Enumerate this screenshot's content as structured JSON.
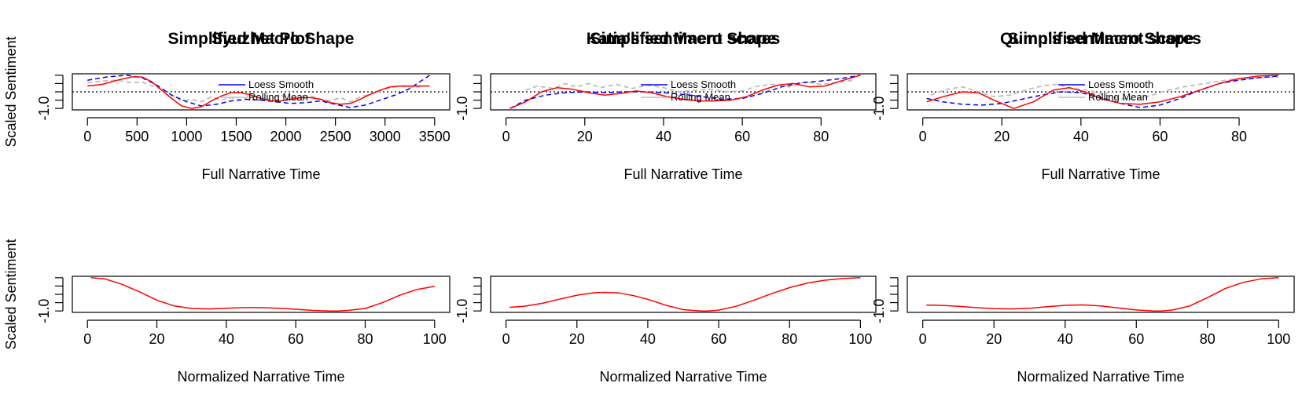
{
  "figure": {
    "ylabel": "Scaled Sentiment",
    "colors": {
      "raw": "#bdbdbd",
      "rolling": "#0000ee",
      "loess": "#ff0000",
      "zero": "#000000"
    }
  },
  "chart_data": [
    {
      "type": "line",
      "title": "Syuzhet Plot",
      "xlabel": "Full Narrative Time",
      "ylabel": "Scaled Sentiment",
      "xlim": [
        0,
        3500
      ],
      "ylim": [
        -1.0,
        1.0
      ],
      "xticks": [
        0,
        500,
        1000,
        1500,
        2000,
        2500,
        3000,
        3500
      ],
      "yticks": [
        -1.0
      ],
      "legend": [
        "Loess Smooth",
        "Rolling Mean"
      ],
      "legend_position": "center",
      "zero_line": 0.0,
      "series": [
        {
          "style": "dashed-gray",
          "x": [
            0,
            150,
            300,
            450,
            550,
            650,
            750,
            850,
            950,
            1050,
            1150,
            1250,
            1350,
            1450,
            1550,
            1650,
            1750,
            1850,
            1950,
            2050,
            2150,
            2250,
            2350,
            2450,
            2550,
            2650,
            2750,
            2850,
            2950,
            3050,
            3150,
            3250,
            3350
          ],
          "y": [
            0.55,
            0.65,
            0.7,
            0.55,
            0.6,
            0.35,
            0.15,
            -0.2,
            -0.55,
            -0.45,
            -0.6,
            -0.3,
            -0.5,
            -0.35,
            -0.5,
            -0.2,
            -0.4,
            -0.45,
            -0.2,
            -0.45,
            -0.5,
            -0.25,
            -0.45,
            -0.55,
            -0.35,
            -0.6,
            -0.3,
            -0.15,
            0.05,
            0.25,
            0.35,
            0.25,
            0.3
          ]
        },
        {
          "name": "Rolling Mean",
          "style": "dashed-blue",
          "x": [
            0,
            200,
            400,
            550,
            700,
            850,
            1000,
            1150,
            1300,
            1450,
            1600,
            1750,
            1900,
            2050,
            2200,
            2350,
            2500,
            2650,
            2800,
            2950,
            3100,
            3250,
            3400,
            3450
          ],
          "y": [
            0.7,
            0.9,
            1.0,
            0.85,
            0.4,
            -0.2,
            -0.6,
            -0.85,
            -0.75,
            -0.55,
            -0.45,
            -0.5,
            -0.6,
            -0.7,
            -0.65,
            -0.55,
            -0.75,
            -0.95,
            -0.8,
            -0.5,
            -0.2,
            0.2,
            0.8,
            1.0
          ]
        },
        {
          "name": "Loess Smooth",
          "style": "solid-red",
          "x": [
            0,
            150,
            300,
            450,
            550,
            650,
            750,
            850,
            950,
            1050,
            1150,
            1250,
            1350,
            1450,
            1550,
            1650,
            1750,
            1850,
            1950,
            2050,
            2150,
            2250,
            2350,
            2450,
            2550,
            2650,
            2750,
            2850,
            2950,
            3050,
            3150,
            3250,
            3350,
            3450
          ],
          "y": [
            0.35,
            0.45,
            0.7,
            0.9,
            0.9,
            0.6,
            0.1,
            -0.4,
            -0.85,
            -1.0,
            -0.9,
            -0.55,
            -0.25,
            -0.05,
            -0.05,
            -0.2,
            -0.4,
            -0.55,
            -0.55,
            -0.45,
            -0.35,
            -0.35,
            -0.45,
            -0.65,
            -0.75,
            -0.7,
            -0.45,
            -0.15,
            0.1,
            0.3,
            0.35,
            0.35,
            0.35,
            0.35
          ]
        }
      ]
    },
    {
      "type": "line",
      "title": "Katia's sentiment scores",
      "xlabel": "Full Narrative Time",
      "ylabel": "",
      "xlim": [
        0,
        90
      ],
      "ylim": [
        -1.0,
        1.0
      ],
      "xticks": [
        0,
        20,
        40,
        60,
        80
      ],
      "yticks": [
        -1.0
      ],
      "legend": [
        "Loess Smooth",
        "Rolling Mean"
      ],
      "legend_position": "center",
      "zero_line": 0.0,
      "series": [
        {
          "style": "dashed-gray",
          "x": [
            5,
            8,
            12,
            15,
            18,
            21,
            24,
            28,
            32,
            36,
            40,
            44,
            48,
            52,
            56,
            60,
            64,
            68,
            72,
            76,
            80,
            84,
            88
          ],
          "y": [
            0.1,
            0.35,
            0.2,
            0.5,
            0.3,
            0.5,
            0.25,
            0.45,
            0.2,
            0.4,
            0.25,
            0.0,
            0.1,
            0.15,
            0.0,
            0.05,
            0.35,
            0.45,
            0.3,
            0.6,
            0.45,
            0.55,
            0.7
          ]
        },
        {
          "name": "Rolling Mean",
          "style": "dashed-blue",
          "x": [
            1,
            5,
            10,
            15,
            20,
            25,
            30,
            35,
            40,
            45,
            50,
            55,
            60,
            65,
            70,
            75,
            80,
            85,
            90
          ],
          "y": [
            -1.0,
            -0.5,
            -0.2,
            -0.05,
            0.0,
            -0.05,
            0.0,
            0.0,
            -0.05,
            -0.15,
            -0.3,
            -0.45,
            -0.4,
            -0.1,
            0.3,
            0.55,
            0.65,
            0.8,
            1.0
          ]
        },
        {
          "name": "Loess Smooth",
          "style": "solid-red",
          "x": [
            1,
            5,
            9,
            13,
            17,
            21,
            25,
            29,
            33,
            37,
            41,
            45,
            49,
            53,
            57,
            61,
            65,
            69,
            73,
            77,
            81,
            85,
            90
          ],
          "y": [
            -1.0,
            -0.6,
            0.0,
            0.25,
            0.15,
            -0.05,
            -0.2,
            -0.1,
            0.05,
            -0.05,
            -0.3,
            -0.45,
            -0.55,
            -0.55,
            -0.5,
            -0.3,
            0.1,
            0.4,
            0.5,
            0.3,
            0.35,
            0.65,
            1.0
          ]
        }
      ]
    },
    {
      "type": "line",
      "title": "Quinn's sentiment scores",
      "xlabel": "Full Narrative Time",
      "ylabel": "",
      "xlim": [
        0,
        90
      ],
      "ylim": [
        -1.0,
        1.0
      ],
      "xticks": [
        0,
        20,
        40,
        60,
        80
      ],
      "yticks": [
        -1.0
      ],
      "legend": [
        "Loess Smooth",
        "Rolling Mean"
      ],
      "legend_position": "center",
      "zero_line": 0.0,
      "series": [
        {
          "style": "dashed-gray",
          "x": [
            2,
            6,
            10,
            14,
            18,
            22,
            26,
            30,
            34,
            38,
            42,
            46,
            50,
            54,
            58,
            62,
            66,
            70,
            74,
            78,
            82,
            86,
            90
          ],
          "y": [
            -0.2,
            0.15,
            0.3,
            0.0,
            -0.3,
            -0.2,
            0.1,
            0.35,
            0.45,
            0.2,
            0.1,
            -0.2,
            -0.4,
            -0.45,
            -0.2,
            0.1,
            0.3,
            0.45,
            0.6,
            0.75,
            0.8,
            0.85,
            0.9
          ]
        },
        {
          "name": "Rolling Mean",
          "style": "dashed-blue",
          "x": [
            1,
            5,
            10,
            15,
            20,
            25,
            30,
            35,
            40,
            45,
            50,
            55,
            60,
            65,
            70,
            75,
            80,
            85,
            90
          ],
          "y": [
            -0.4,
            -0.6,
            -0.75,
            -0.8,
            -0.7,
            -0.45,
            -0.2,
            0.0,
            -0.05,
            -0.35,
            -0.7,
            -0.95,
            -0.8,
            -0.4,
            0.1,
            0.5,
            0.7,
            0.85,
            0.95
          ]
        },
        {
          "name": "Loess Smooth",
          "style": "solid-red",
          "x": [
            1,
            5,
            10,
            14,
            18,
            23,
            28,
            33,
            37,
            41,
            45,
            50,
            55,
            60,
            65,
            70,
            75,
            80,
            85,
            90
          ],
          "y": [
            -0.6,
            -0.3,
            0.0,
            -0.05,
            -0.5,
            -1.0,
            -0.6,
            0.1,
            0.25,
            0.0,
            -0.4,
            -0.7,
            -0.75,
            -0.6,
            -0.3,
            0.1,
            0.5,
            0.8,
            0.95,
            1.0
          ]
        }
      ]
    },
    {
      "type": "line",
      "title": "Simplified Macro Shape",
      "xlabel": "Normalized Narrative Time",
      "ylabel": "Scaled Sentiment",
      "xlim": [
        0,
        100
      ],
      "ylim": [
        -1.0,
        1.0
      ],
      "xticks": [
        0,
        20,
        40,
        60,
        80,
        100
      ],
      "yticks": [
        -1.0
      ],
      "series": [
        {
          "style": "solid-red",
          "x": [
            1,
            5,
            10,
            15,
            20,
            25,
            30,
            35,
            40,
            45,
            50,
            55,
            60,
            65,
            70,
            72,
            75,
            80,
            85,
            90,
            95,
            100
          ],
          "y": [
            1.0,
            0.93,
            0.6,
            0.15,
            -0.35,
            -0.7,
            -0.85,
            -0.88,
            -0.84,
            -0.8,
            -0.8,
            -0.84,
            -0.9,
            -0.97,
            -1.0,
            -1.0,
            -0.97,
            -0.85,
            -0.5,
            -0.05,
            0.3,
            0.48
          ]
        }
      ]
    },
    {
      "type": "line",
      "title": "Simplified Macro Shape",
      "xlabel": "Normalized Narrative Time",
      "ylabel": "",
      "xlim": [
        0,
        100
      ],
      "ylim": [
        -1.0,
        1.0
      ],
      "xticks": [
        0,
        20,
        40,
        60,
        80,
        100
      ],
      "yticks": [
        -1.0
      ],
      "series": [
        {
          "style": "solid-red",
          "x": [
            1,
            5,
            10,
            15,
            20,
            25,
            28,
            32,
            36,
            40,
            45,
            50,
            55,
            57,
            60,
            65,
            70,
            75,
            80,
            85,
            90,
            95,
            100
          ],
          "y": [
            -0.78,
            -0.72,
            -0.55,
            -0.3,
            -0.05,
            0.1,
            0.12,
            0.08,
            -0.08,
            -0.3,
            -0.65,
            -0.92,
            -1.0,
            -1.0,
            -0.95,
            -0.72,
            -0.35,
            0.05,
            0.4,
            0.68,
            0.85,
            0.95,
            1.0
          ]
        }
      ]
    },
    {
      "type": "line",
      "title": "Simplified Macro Shape",
      "xlabel": "Normalized Narrative Time",
      "ylabel": "",
      "xlim": [
        0,
        100
      ],
      "ylim": [
        -1.0,
        1.0
      ],
      "xticks": [
        0,
        20,
        40,
        60,
        80,
        100
      ],
      "yticks": [
        -1.0
      ],
      "series": [
        {
          "style": "solid-red",
          "x": [
            1,
            5,
            10,
            15,
            20,
            25,
            30,
            35,
            40,
            45,
            50,
            55,
            60,
            65,
            67,
            70,
            75,
            80,
            85,
            90,
            95,
            100
          ],
          "y": [
            -0.65,
            -0.66,
            -0.72,
            -0.8,
            -0.86,
            -0.88,
            -0.84,
            -0.74,
            -0.66,
            -0.64,
            -0.7,
            -0.82,
            -0.94,
            -1.0,
            -1.0,
            -0.95,
            -0.7,
            -0.2,
            0.35,
            0.72,
            0.93,
            1.0
          ]
        }
      ]
    }
  ]
}
